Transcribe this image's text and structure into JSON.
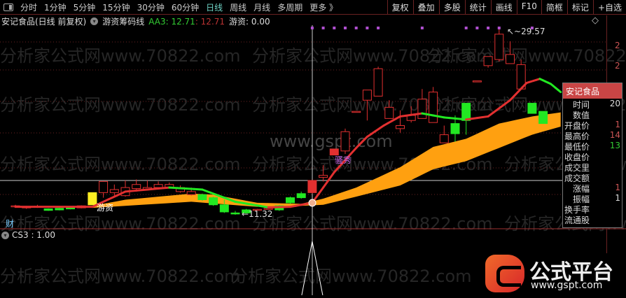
{
  "toolbar": {
    "items": [
      "分时",
      "1分钟",
      "5分钟",
      "15分钟",
      "30分钟",
      "60分钟",
      "日线",
      "周线",
      "月线",
      "多周期",
      "更多 》"
    ],
    "active": "日线",
    "right": [
      "复权",
      "叠加",
      "多股",
      "统计",
      "画线",
      "F10",
      "简框",
      "标记",
      "+自选"
    ]
  },
  "legend": {
    "stock": "安记食品(日线 前复权)",
    "indicator": "游资筹码线",
    "aa3": "AA3: 12.71",
    "aa3_2": ": 12.71",
    "youzi": "游资: 0.00"
  },
  "colors": {
    "up": "#e23030",
    "down": "#22e822",
    "band": "#ffa010",
    "signal": "#b050d0",
    "grid": "#6a2222"
  },
  "labels": {
    "cai": "财",
    "youzi": "游资",
    "special": "骚秀",
    "high": "↖~29.57",
    "low": "←11.32"
  },
  "subpanel": {
    "label": "CS3 : 1.00"
  },
  "axis_labels": [
    "2",
    "2"
  ],
  "tooltip": {
    "title": "安记食品",
    "rows": [
      {
        "k": "时间",
        "v": "20",
        "c": "#ddd"
      },
      {
        "k": "数值",
        "v": "",
        "c": "#ddd"
      },
      {
        "k": "开盘价",
        "v": "1",
        "c": "#c55"
      },
      {
        "k": "最高价",
        "v": "14",
        "c": "#c55"
      },
      {
        "k": "最低价",
        "v": "13",
        "c": "#3c3"
      },
      {
        "k": "收盘价",
        "v": "",
        "c": "#ddd"
      },
      {
        "k": "成交里",
        "v": "",
        "c": "#ddd"
      },
      {
        "k": "成交额",
        "v": "",
        "c": "#ddd"
      },
      {
        "k": "涨幅",
        "v": "1",
        "c": "#c55"
      },
      {
        "k": "振幅",
        "v": "1",
        "c": "#ddd"
      },
      {
        "k": "换手率",
        "v": "",
        "c": "#ddd"
      },
      {
        "k": "流通股",
        "v": "",
        "c": "#ddd"
      }
    ]
  },
  "watermarks": {
    "site": "分析家公式网www.70822.com",
    "gspt": "www.gspt.com"
  },
  "logo": {
    "title": "公式平台",
    "url": "www.gspt.com"
  },
  "chart_data": {
    "type": "candlestick",
    "price_range": [
      11.32,
      29.57
    ],
    "candles": [
      [
        12.1,
        12.2,
        12.3,
        12.0
      ],
      [
        12.0,
        12.1,
        12.2,
        11.9
      ],
      [
        12.1,
        12.15,
        12.3,
        12.0
      ],
      [
        11.9,
        11.75,
        11.95,
        11.7
      ],
      [
        11.95,
        11.8,
        12.0,
        11.75
      ],
      [
        12.0,
        11.9,
        12.05,
        11.85
      ],
      [
        12.0,
        12.2,
        12.25,
        11.95
      ],
      [
        12.3,
        13.5,
        13.5,
        12.3,
        "yellow"
      ],
      [
        13.5,
        14.6,
        14.6,
        13.0
      ],
      [
        13.5,
        13.8,
        14.3,
        13.2
      ],
      [
        13.2,
        14.0,
        14.7,
        13.1
      ],
      [
        13.9,
        14.3,
        14.8,
        13.8
      ],
      [
        13.8,
        14.0,
        14.7,
        13.7
      ],
      [
        14.0,
        14.3,
        14.6,
        13.9
      ],
      [
        14.0,
        14.3,
        14.5,
        13.9
      ],
      [
        13.6,
        14.0,
        14.2,
        13.5
      ],
      [
        13.3,
        13.6,
        14.0,
        13.2
      ],
      [
        13.3,
        12.8,
        13.4,
        12.7
      ],
      [
        13.0,
        12.3,
        13.1,
        12.2
      ],
      [
        12.3,
        11.6,
        12.8,
        11.5
      ],
      [
        11.5,
        11.45,
        11.7,
        11.32
      ],
      [
        11.8,
        11.5,
        11.9,
        11.45
      ],
      [
        11.8,
        11.85,
        11.9,
        11.75
      ],
      [
        11.9,
        11.95,
        12.0,
        11.85
      ],
      [
        12.2,
        11.8,
        12.3,
        11.7
      ],
      [
        13.0,
        12.5,
        13.1,
        12.4
      ],
      [
        13.4,
        13.0,
        13.6,
        12.9
      ],
      [
        13.5,
        14.7,
        14.7,
        13.4,
        "solid"
      ],
      [
        15.0,
        15.2,
        16.2,
        14.6
      ],
      [
        17.2,
        17.8,
        17.8,
        17.2,
        "solid"
      ],
      [
        17.6,
        19.5,
        19.8,
        17.3
      ],
      [
        21.5,
        21.5,
        21.5,
        21.5
      ],
      [
        22.6,
        23.6,
        23.6,
        20.6
      ],
      [
        23.0,
        25.7,
        25.9,
        23.0
      ],
      [
        20.8,
        21.9,
        22.6,
        20.8
      ],
      [
        19.8,
        20.1,
        21.6,
        19.4
      ],
      [
        20.6,
        21.1,
        22.0,
        20.4
      ],
      [
        20.8,
        22.7,
        23.7,
        20.8
      ],
      [
        20.4,
        23.4,
        23.9,
        20.4
      ],
      [
        18.4,
        19.2,
        20.1,
        18.4
      ],
      [
        20.3,
        19.3,
        21.1,
        18.5
      ],
      [
        22.3,
        20.6,
        22.3,
        19.2
      ],
      [
        24.5,
        24.5,
        24.5,
        24.5
      ],
      [
        26.0,
        26.9,
        26.9,
        25.8
      ],
      [
        26.6,
        29.1,
        29.57,
        26.4
      ],
      [
        26.2,
        27.1,
        28.4,
        26.2
      ],
      [
        23.7,
        26.1,
        26.6,
        23.7
      ],
      [
        22.3,
        21.3,
        22.3,
        21.3
      ],
      [
        21.5,
        20.3,
        21.5,
        20.3
      ]
    ],
    "ma": [
      [
        0,
        12.1
      ],
      [
        7,
        12.1
      ],
      [
        10,
        13.6
      ],
      [
        14,
        14.0
      ],
      [
        17,
        13.8
      ],
      [
        20,
        12.6
      ],
      [
        23,
        12.05
      ],
      [
        25,
        12.1
      ],
      [
        27,
        12.5
      ],
      [
        29,
        15.5
      ],
      [
        31,
        17.9
      ],
      [
        32,
        19.0
      ],
      [
        33.5,
        20.1
      ],
      [
        35,
        21.0
      ],
      [
        37,
        21.3
      ],
      [
        39,
        20.9
      ],
      [
        41,
        20.7
      ],
      [
        43,
        21.0
      ],
      [
        45,
        22.6
      ],
      [
        46.5,
        24.3
      ],
      [
        47.7,
        24.7
      ],
      [
        48.7,
        24.2
      ],
      [
        49.6,
        23.4
      ]
    ],
    "band_upper": [
      [
        7,
        12.2
      ],
      [
        10,
        12.8
      ],
      [
        16,
        13.4
      ],
      [
        18,
        13.3
      ],
      [
        22,
        12.5
      ],
      [
        26,
        12.4
      ],
      [
        28,
        12.9
      ],
      [
        31,
        14.0
      ],
      [
        35,
        16.0
      ],
      [
        38,
        18.0
      ],
      [
        41,
        18.8
      ],
      [
        44,
        20.3
      ],
      [
        47,
        21.0
      ],
      [
        49.6,
        21.4
      ]
    ],
    "band_lower": [
      [
        7,
        12.0
      ],
      [
        16,
        12.6
      ],
      [
        22,
        12.1
      ],
      [
        26,
        12.2
      ],
      [
        28,
        12.3
      ],
      [
        31,
        13.1
      ],
      [
        35,
        14.2
      ],
      [
        38,
        15.8
      ],
      [
        41,
        16.6
      ],
      [
        44,
        17.9
      ],
      [
        47,
        19.2
      ],
      [
        49.6,
        20.0
      ]
    ],
    "signals": [
      27,
      28,
      29,
      30,
      31,
      32,
      33,
      37,
      41,
      42,
      43,
      44,
      47
    ],
    "cs3_spike_index": 27
  }
}
